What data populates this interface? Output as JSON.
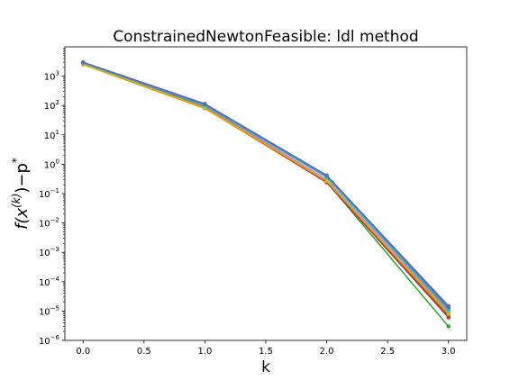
{
  "chart_data": {
    "type": "line",
    "title": "ConstrainedNewtonFeasible: ldl method",
    "xlabel": "k",
    "ylabel": "f(x(k))−p*",
    "ylabel_parts": {
      "base": "f(x",
      "sup1": "(k)",
      "mid": ")−p",
      "sup2": "*"
    },
    "x": [
      0,
      1,
      2,
      3
    ],
    "xlim": [
      -0.15,
      3.15
    ],
    "ylim": [
      1e-06,
      10000.0
    ],
    "yscale": "log",
    "x_ticks": [
      "0.0",
      "0.5",
      "1.0",
      "1.5",
      "2.0",
      "2.5",
      "3.0"
    ],
    "y_ticks": [
      {
        "base": "10",
        "exp": "−6"
      },
      {
        "base": "10",
        "exp": "−5"
      },
      {
        "base": "10",
        "exp": "−4"
      },
      {
        "base": "10",
        "exp": "−3"
      },
      {
        "base": "10",
        "exp": "−2"
      },
      {
        "base": "10",
        "exp": "−1"
      },
      {
        "base": "10",
        "exp": "0"
      },
      {
        "base": "10",
        "exp": "1"
      },
      {
        "base": "10",
        "exp": "2"
      },
      {
        "base": "10",
        "exp": "3"
      }
    ],
    "grid": false,
    "legend": false,
    "series": [
      {
        "color": "#1f77b4",
        "values": [
          2900,
          105,
          0.4,
          1.3e-05
        ]
      },
      {
        "color": "#ff7f0e",
        "values": [
          2500,
          80,
          0.24,
          9e-06
        ]
      },
      {
        "color": "#2ca02c",
        "values": [
          2700,
          95,
          0.25,
          3e-06
        ]
      },
      {
        "color": "#d62728",
        "values": [
          2750,
          90,
          0.24,
          6e-06
        ]
      },
      {
        "color": "#9467bd",
        "values": [
          3000,
          115,
          0.42,
          1.5e-05
        ]
      },
      {
        "color": "#8c564b",
        "values": [
          2800,
          98,
          0.26,
          7e-06
        ]
      },
      {
        "color": "#e377c2",
        "values": [
          2850,
          100,
          0.3,
          1e-05
        ]
      },
      {
        "color": "#7f7f7f",
        "values": [
          2950,
          108,
          0.36,
          1.2e-05
        ]
      },
      {
        "color": "#bcbd22",
        "values": [
          2600,
          85,
          0.27,
          8e-06
        ]
      },
      {
        "color": "#17becf",
        "values": [
          2880,
          103,
          0.38,
          1.1e-05
        ]
      },
      {
        "color": "#4c72b0",
        "values": [
          2920,
          110,
          0.41,
          1.4e-05
        ]
      }
    ]
  }
}
